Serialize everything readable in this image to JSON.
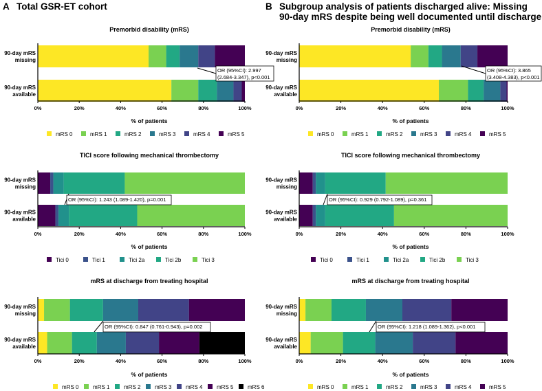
{
  "panels": [
    {
      "letter": "A",
      "title_lines": [
        "Total GSR-ET cohort"
      ]
    },
    {
      "letter": "B",
      "title_lines": [
        "Subgroup analysis of patients discharged alive: Missing",
        "90-day mRS despite being well documented until discharge"
      ]
    }
  ],
  "colors": {
    "mrs": [
      "#fde725",
      "#7ad151",
      "#22a884",
      "#2a788e",
      "#414487",
      "#440154",
      "#000000"
    ],
    "tici": [
      "#440154",
      "#3b528b",
      "#21918c",
      "#22a884",
      "#7ad151"
    ]
  },
  "chart_data": [
    {
      "type": "bar",
      "orientation": "horizontal",
      "stacked": true,
      "panel": "A",
      "row": 0,
      "title": "Premorbid disability (mRS)",
      "categories": [
        [
          "90-day mRS",
          "missing"
        ],
        [
          "90-day mRS",
          "available"
        ]
      ],
      "xlabel": "% of patients",
      "xlim": [
        0,
        100
      ],
      "xticks": [
        "0%",
        "20%",
        "40%",
        "60%",
        "80%",
        "100%"
      ],
      "series": [
        {
          "name": "mRS 0",
          "values": [
            53.5,
            64.5
          ]
        },
        {
          "name": "mRS 1",
          "values": [
            8.5,
            13.0
          ]
        },
        {
          "name": "mRS 2",
          "values": [
            6.5,
            9.0
          ]
        },
        {
          "name": "mRS 3",
          "values": [
            9.0,
            8.0
          ]
        },
        {
          "name": "mRS 4",
          "values": [
            8.0,
            4.0
          ]
        },
        {
          "name": "mRS 5",
          "values": [
            14.5,
            1.5
          ]
        }
      ],
      "annotation": [
        "OR (95%CI): 2.997",
        "(2.684-3.347), p<0.001"
      ]
    },
    {
      "type": "bar",
      "orientation": "horizontal",
      "stacked": true,
      "panel": "B",
      "row": 0,
      "title": "Premorbid disability (mRS)",
      "categories": [
        [
          "90-day mRS",
          "missing"
        ],
        [
          "90-day mRS",
          "available"
        ]
      ],
      "xlabel": "% of patients",
      "xlim": [
        0,
        100
      ],
      "xticks": [
        "0%",
        "20%",
        "40%",
        "60%",
        "80%",
        "100%"
      ],
      "series": [
        {
          "name": "mRS 0",
          "values": [
            53.5,
            67.0
          ]
        },
        {
          "name": "mRS 1",
          "values": [
            8.5,
            14.0
          ]
        },
        {
          "name": "mRS 2",
          "values": [
            6.5,
            7.5
          ]
        },
        {
          "name": "mRS 3",
          "values": [
            9.0,
            8.0
          ]
        },
        {
          "name": "mRS 4",
          "values": [
            8.0,
            3.0
          ]
        },
        {
          "name": "mRS 5",
          "values": [
            14.5,
            0.5
          ]
        }
      ],
      "annotation": [
        "OR (95%CI): 3.865",
        "(3.408-4.383), p<0.001"
      ]
    },
    {
      "type": "bar",
      "orientation": "horizontal",
      "stacked": true,
      "panel": "A",
      "row": 1,
      "title": "TICI score following mechanical thrombectomy",
      "categories": [
        [
          "90-day mRS",
          "missing"
        ],
        [
          "90-day mRS",
          "available"
        ]
      ],
      "xlabel": "% of patients",
      "xlim": [
        0,
        100
      ],
      "xticks": [
        "0%",
        "20%",
        "40%",
        "60%",
        "80%",
        "100%"
      ],
      "series": [
        {
          "name": "Tici 0",
          "values": [
            6.0,
            8.5
          ]
        },
        {
          "name": "Tici 1",
          "values": [
            1.5,
            1.5
          ]
        },
        {
          "name": "Tici 2a",
          "values": [
            5.0,
            5.0
          ]
        },
        {
          "name": "Tici 2b",
          "values": [
            29.5,
            33.0
          ]
        },
        {
          "name": "Tici 3",
          "values": [
            58.0,
            52.0
          ]
        }
      ],
      "annotation": [
        "OR (95%CI): 1.243 (1.089-1.420), p=0.001"
      ]
    },
    {
      "type": "bar",
      "orientation": "horizontal",
      "stacked": true,
      "panel": "B",
      "row": 1,
      "title": "TICI score following mechanical thrombectomy",
      "categories": [
        [
          "90-day mRS",
          "missing"
        ],
        [
          "90-day mRS",
          "available"
        ]
      ],
      "xlabel": "% of patients",
      "xlim": [
        0,
        100
      ],
      "xticks": [
        "0%",
        "20%",
        "40%",
        "60%",
        "80%",
        "100%"
      ],
      "series": [
        {
          "name": "Tici 0",
          "values": [
            6.5,
            6.5
          ]
        },
        {
          "name": "Tici 1",
          "values": [
            1.5,
            1.5
          ]
        },
        {
          "name": "Tici 2a",
          "values": [
            4.5,
            4.5
          ]
        },
        {
          "name": "Tici 2b",
          "values": [
            29.0,
            33.0
          ]
        },
        {
          "name": "Tici 3",
          "values": [
            58.5,
            54.5
          ]
        }
      ],
      "annotation": [
        "OR (95%CI): 0.929 (0.792-1.089), p=0.361"
      ]
    },
    {
      "type": "bar",
      "orientation": "horizontal",
      "stacked": true,
      "panel": "A",
      "row": 2,
      "title": "mRS at discharge from treating hospital",
      "categories": [
        [
          "90-day mRS",
          "missing"
        ],
        [
          "90-day mRS",
          "available"
        ]
      ],
      "xlabel": "% of patients",
      "xlim": [
        0,
        100
      ],
      "xticks": [
        "0%",
        "20%",
        "40%",
        "60%",
        "80%",
        "100%"
      ],
      "series": [
        {
          "name": "mRS 0",
          "values": [
            3.0,
            4.5
          ]
        },
        {
          "name": "mRS 1",
          "values": [
            12.5,
            12.0
          ]
        },
        {
          "name": "mRS 2",
          "values": [
            16.0,
            12.0
          ]
        },
        {
          "name": "mRS 3",
          "values": [
            17.0,
            14.0
          ]
        },
        {
          "name": "mRS 4",
          "values": [
            24.5,
            16.0
          ]
        },
        {
          "name": "mRS 5",
          "values": [
            27.0,
            19.5
          ]
        },
        {
          "name": "mRS 6",
          "values": [
            0.0,
            22.0
          ]
        }
      ],
      "annotation": [
        "OR (95%CI): 0.847 (0.761-0.943), p=0.002"
      ]
    },
    {
      "type": "bar",
      "orientation": "horizontal",
      "stacked": true,
      "panel": "B",
      "row": 2,
      "title": "mRS at discharge from treating hospital",
      "categories": [
        [
          "90-day mRS",
          "missing"
        ],
        [
          "90-day mRS",
          "available"
        ]
      ],
      "xlabel": "% of patients",
      "xlim": [
        0,
        100
      ],
      "xticks": [
        "0%",
        "20%",
        "40%",
        "60%",
        "80%",
        "100%"
      ],
      "series": [
        {
          "name": "mRS 0",
          "values": [
            3.0,
            5.5
          ]
        },
        {
          "name": "mRS 1",
          "values": [
            12.5,
            15.5
          ]
        },
        {
          "name": "mRS 2",
          "values": [
            16.5,
            15.5
          ]
        },
        {
          "name": "mRS 3",
          "values": [
            17.5,
            18.0
          ]
        },
        {
          "name": "mRS 4",
          "values": [
            23.5,
            20.5
          ]
        },
        {
          "name": "mRS 5",
          "values": [
            27.0,
            25.0
          ]
        }
      ],
      "annotation": [
        "OR (95%CI): 1.218 (1.089-1.362), p<0.001"
      ]
    }
  ]
}
